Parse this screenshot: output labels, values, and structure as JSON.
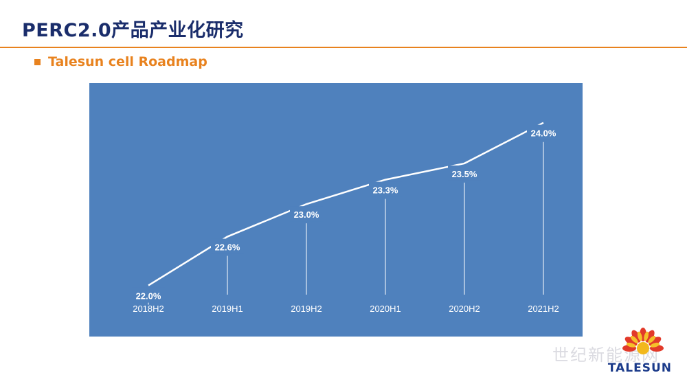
{
  "slide": {
    "title": "PERC2.0产品产业化研究",
    "subtitle": "Talesun cell Roadmap"
  },
  "chart_data": {
    "type": "line",
    "categories": [
      "2018H2",
      "2019H1",
      "2019H2",
      "2020H1",
      "2020H2",
      "2021H2"
    ],
    "values": [
      22.0,
      22.6,
      23.0,
      23.3,
      23.5,
      24.0
    ],
    "value_labels": [
      "22.0%",
      "22.6%",
      "23.0%",
      "23.3%",
      "23.5%",
      "24.0%"
    ],
    "unit": "%",
    "ylim": [
      21.6,
      24.2
    ],
    "grid": false,
    "colors": {
      "background": "#4f81bd",
      "line": "#ffffff",
      "text": "#ffffff"
    }
  },
  "logo": {
    "text": "TALESUN",
    "watermark": "世纪新能源网"
  },
  "colors": {
    "title": "#1a2d6b",
    "accent": "#e8821e"
  }
}
